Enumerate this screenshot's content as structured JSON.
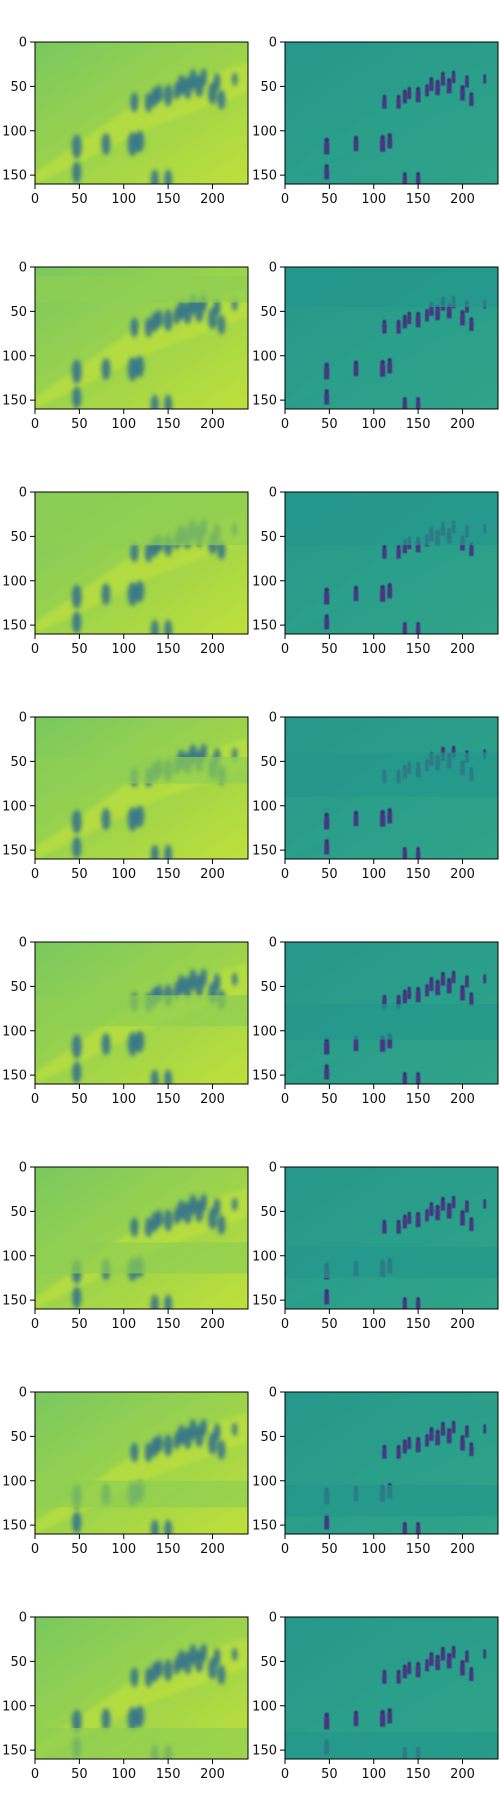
{
  "chart_data": {
    "type": "heatmap",
    "layout": {
      "rows": 8,
      "columns": 2
    },
    "colormap": "viridis",
    "image_extent": {
      "x": [
        0,
        240
      ],
      "y": [
        0,
        160
      ]
    },
    "x_ticks": [
      0,
      50,
      100,
      150,
      200
    ],
    "y_ticks": [
      0,
      50,
      100,
      150
    ],
    "panels": [
      {
        "row": 1,
        "left_band": null,
        "right_band": null
      },
      {
        "row": 2,
        "left_band": [
          10,
          40
        ],
        "right_band": [
          0,
          45
        ]
      },
      {
        "row": 3,
        "left_band": [
          0,
          60
        ],
        "right_band": [
          0,
          60
        ]
      },
      {
        "row": 4,
        "left_band": [
          45,
          75
        ],
        "right_band": [
          40,
          90
        ]
      },
      {
        "row": 5,
        "left_band": [
          60,
          95
        ],
        "right_band": [
          70,
          110
        ]
      },
      {
        "row": 6,
        "left_band": [
          85,
          120
        ],
        "right_band": [
          90,
          125
        ]
      },
      {
        "row": 7,
        "left_band": [
          100,
          130
        ],
        "right_band": [
          105,
          140
        ]
      },
      {
        "row": 8,
        "left_band": [
          125,
          160
        ],
        "right_band": [
          130,
          160
        ]
      }
    ]
  }
}
